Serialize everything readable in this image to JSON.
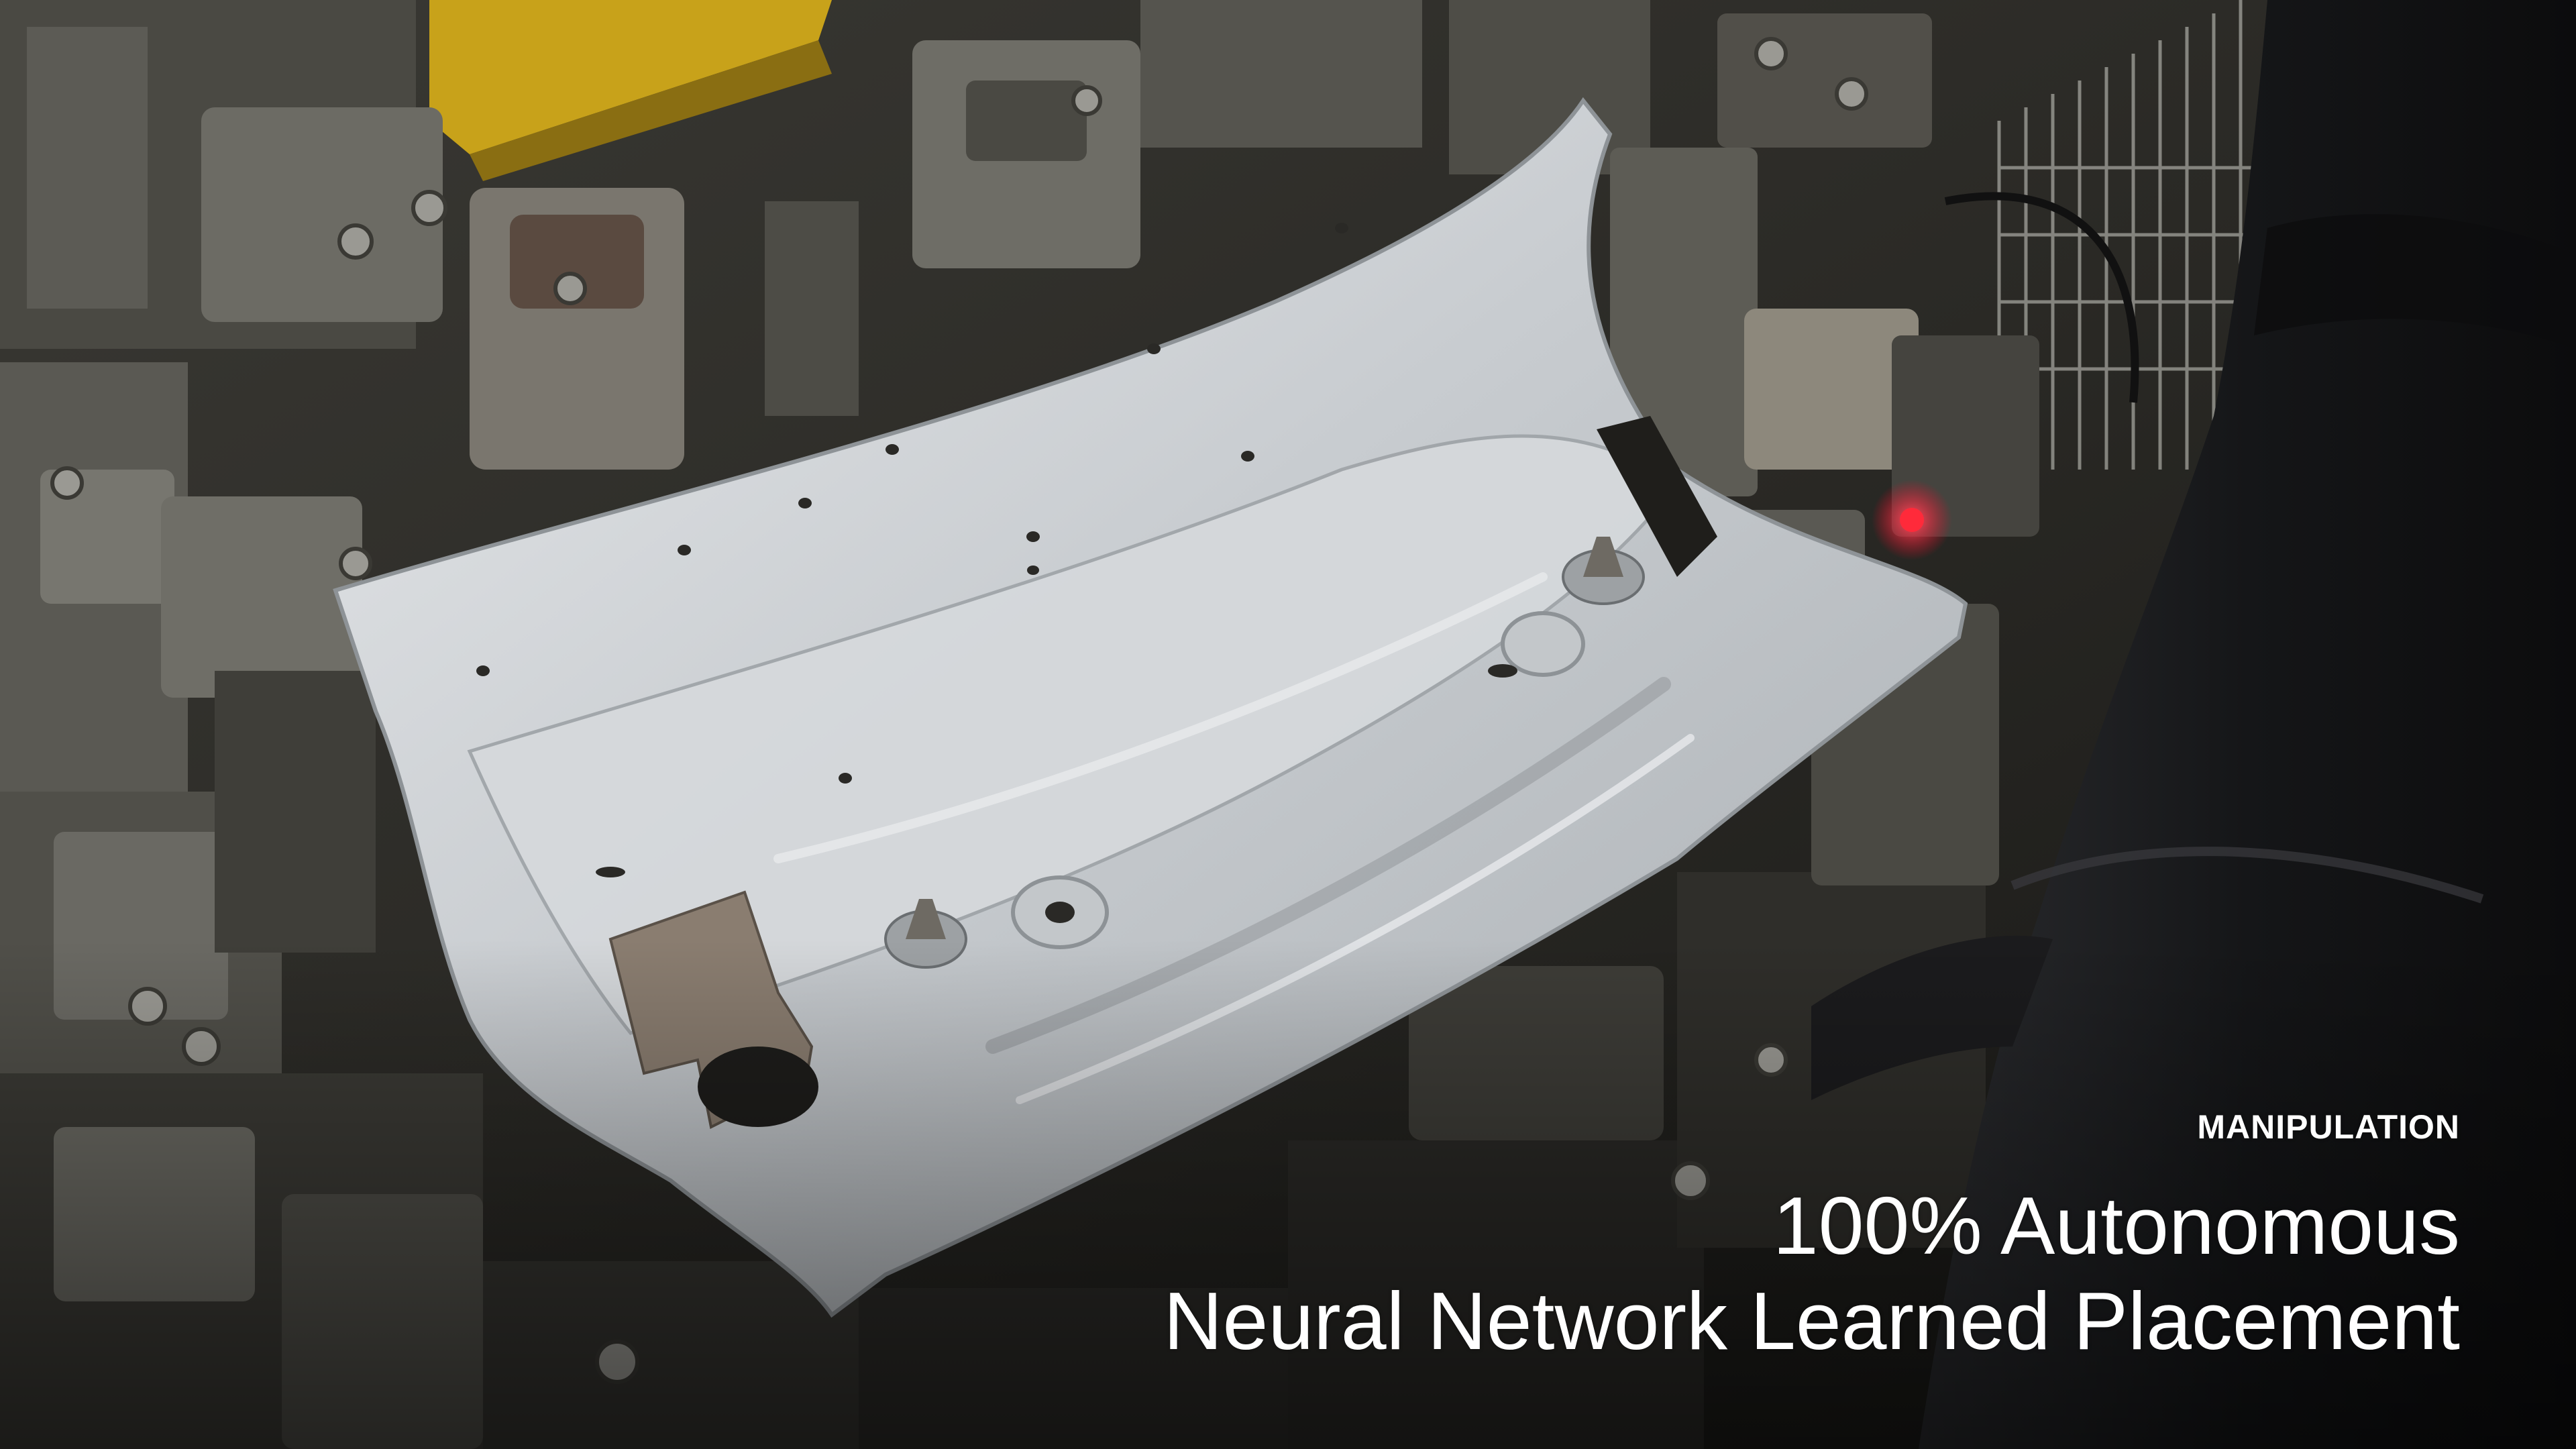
{
  "caption": {
    "label": "MANIPULATION",
    "line1": "100% Autonomous",
    "line2": "Neural Network Learned Placement"
  },
  "scene_icons": [
    "sheet-metal-panel-icon",
    "welding-fixture-icon",
    "robot-arm-icon",
    "status-light-icon"
  ],
  "colors": {
    "background": "#1a1a18",
    "panel": "#c9cdd0",
    "fixture": "#55554e",
    "accent_yellow": "#c8a21a",
    "robot_arm": "#1c1d1f",
    "indicator_red": "#ff2a3a",
    "caption_text": "#ffffff"
  }
}
